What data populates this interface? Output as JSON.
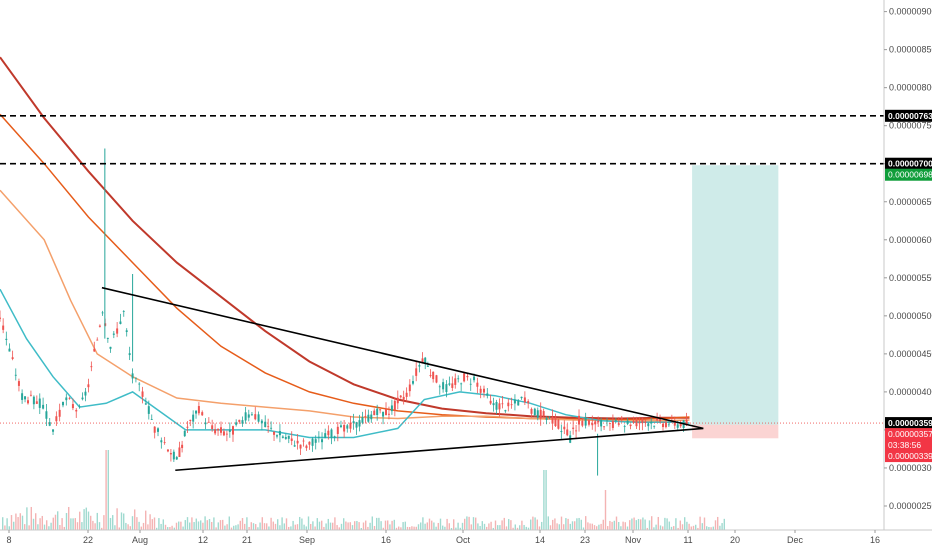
{
  "chart_data": {
    "type": "candlestick",
    "x_ticks": [
      "8",
      "22",
      "Aug",
      "12",
      "21",
      "Sep",
      "16",
      "Oct",
      "14",
      "23",
      "Nov",
      "11",
      "20",
      "Dec",
      "16"
    ],
    "y_ticks": [
      "0.00000900",
      "0.00000850",
      "0.00000800",
      "0.00000750",
      "0.00000700",
      "0.00000650",
      "0.00000600",
      "0.00000550",
      "0.00000500",
      "0.00000450",
      "0.00000400",
      "0.00000350",
      "0.00000300",
      "0.00000250"
    ],
    "ylim": [
      2.25e-06,
      9.1e-06
    ],
    "grid": false,
    "price_tags": [
      {
        "label": "0.00000763",
        "value": 7.63e-06,
        "style": "black"
      },
      {
        "label": "0.00000700",
        "value": 7e-06,
        "style": "black"
      },
      {
        "label": "0.00000698",
        "value": 6.98e-06,
        "style": "green"
      },
      {
        "label": "0.00000359",
        "value": 3.59e-06,
        "style": "black"
      },
      {
        "label": "0.00000357",
        "value": 3.57e-06,
        "style": "red"
      },
      {
        "label": "03:38:56",
        "value": 3.47e-06,
        "style": "red"
      },
      {
        "label": "0.00000339",
        "value": 3.39e-06,
        "style": "red"
      }
    ],
    "horizontal_levels": [
      7.63e-06,
      7e-06
    ],
    "triangle": {
      "upper": [
        [
          0.1153,
          5.37e-06
        ],
        [
          0.7956,
          3.52e-06
        ]
      ],
      "lower": [
        [
          0.1983,
          2.97e-06
        ],
        [
          0.7956,
          3.52e-06
        ]
      ]
    },
    "position": {
      "entry": 3.57e-06,
      "target": 6.98e-06,
      "stop": 3.39e-06,
      "x_start": 0.7829,
      "x_end": 0.8805
    },
    "price_series": [
      {
        "t": 0.0,
        "o": 507,
        "c": 500
      },
      {
        "t": 0.025,
        "o": 500,
        "c": 395
      },
      {
        "t": 0.045,
        "o": 395,
        "c": 385
      },
      {
        "t": 0.06,
        "o": 385,
        "c": 352
      },
      {
        "t": 0.075,
        "o": 352,
        "c": 390
      },
      {
        "t": 0.09,
        "o": 390,
        "c": 375
      },
      {
        "t": 0.1,
        "o": 375,
        "c": 410
      },
      {
        "t": 0.11,
        "o": 410,
        "c": 470
      },
      {
        "t": 0.116,
        "o": 470,
        "c": 510
      },
      {
        "t": 0.125,
        "o": 510,
        "c": 460
      },
      {
        "t": 0.14,
        "o": 460,
        "c": 505
      },
      {
        "t": 0.15,
        "o": 505,
        "c": 420
      },
      {
        "t": 0.165,
        "o": 420,
        "c": 390
      },
      {
        "t": 0.175,
        "o": 390,
        "c": 352
      },
      {
        "t": 0.19,
        "o": 352,
        "c": 328
      },
      {
        "t": 0.2,
        "o": 328,
        "c": 310
      },
      {
        "t": 0.212,
        "o": 310,
        "c": 355
      },
      {
        "t": 0.225,
        "o": 355,
        "c": 375
      },
      {
        "t": 0.24,
        "o": 375,
        "c": 352
      },
      {
        "t": 0.26,
        "o": 352,
        "c": 345
      },
      {
        "t": 0.285,
        "o": 345,
        "c": 375
      },
      {
        "t": 0.3,
        "o": 375,
        "c": 355
      },
      {
        "t": 0.33,
        "o": 355,
        "c": 335
      },
      {
        "t": 0.35,
        "o": 335,
        "c": 330
      },
      {
        "t": 0.375,
        "o": 330,
        "c": 345
      },
      {
        "t": 0.4,
        "o": 345,
        "c": 355
      },
      {
        "t": 0.42,
        "o": 355,
        "c": 370
      },
      {
        "t": 0.44,
        "o": 370,
        "c": 375
      },
      {
        "t": 0.46,
        "o": 375,
        "c": 398
      },
      {
        "t": 0.478,
        "o": 398,
        "c": 445
      },
      {
        "t": 0.49,
        "o": 445,
        "c": 420
      },
      {
        "t": 0.505,
        "o": 420,
        "c": 405
      },
      {
        "t": 0.525,
        "o": 405,
        "c": 420
      },
      {
        "t": 0.54,
        "o": 420,
        "c": 412
      },
      {
        "t": 0.555,
        "o": 412,
        "c": 385
      },
      {
        "t": 0.575,
        "o": 385,
        "c": 380
      },
      {
        "t": 0.59,
        "o": 380,
        "c": 390
      },
      {
        "t": 0.605,
        "o": 390,
        "c": 373
      },
      {
        "t": 0.625,
        "o": 373,
        "c": 365
      },
      {
        "t": 0.645,
        "o": 365,
        "c": 340
      },
      {
        "t": 0.655,
        "o": 340,
        "c": 362
      },
      {
        "t": 0.67,
        "o": 362,
        "c": 360
      },
      {
        "t": 0.69,
        "o": 360,
        "c": 355
      },
      {
        "t": 0.71,
        "o": 355,
        "c": 360
      },
      {
        "t": 0.73,
        "o": 360,
        "c": 362
      },
      {
        "t": 0.75,
        "o": 362,
        "c": 360
      },
      {
        "t": 0.77,
        "o": 360,
        "c": 359
      },
      {
        "t": 0.78,
        "o": 359,
        "c": 357
      }
    ],
    "moving_averages": [
      {
        "color": "#c0392b",
        "points": [
          [
            0.0,
            840
          ],
          [
            0.05,
            760
          ],
          [
            0.1,
            690
          ],
          [
            0.15,
            625
          ],
          [
            0.2,
            570
          ],
          [
            0.25,
            525
          ],
          [
            0.3,
            480
          ],
          [
            0.35,
            440
          ],
          [
            0.4,
            410
          ],
          [
            0.45,
            390
          ],
          [
            0.5,
            378
          ],
          [
            0.55,
            372
          ],
          [
            0.6,
            368
          ],
          [
            0.65,
            366
          ],
          [
            0.7,
            365
          ],
          [
            0.75,
            366
          ],
          [
            0.78,
            366
          ]
        ]
      },
      {
        "color": "#e65c1a",
        "points": [
          [
            0.0,
            765
          ],
          [
            0.05,
            700
          ],
          [
            0.1,
            630
          ],
          [
            0.15,
            570
          ],
          [
            0.2,
            510
          ],
          [
            0.25,
            460
          ],
          [
            0.3,
            425
          ],
          [
            0.35,
            400
          ],
          [
            0.4,
            385
          ],
          [
            0.45,
            375
          ],
          [
            0.5,
            370
          ],
          [
            0.55,
            367
          ],
          [
            0.6,
            365
          ],
          [
            0.65,
            364
          ],
          [
            0.7,
            363
          ],
          [
            0.75,
            365
          ],
          [
            0.78,
            367
          ]
        ]
      },
      {
        "color": "#f4a06b",
        "points": [
          [
            0.0,
            665
          ],
          [
            0.05,
            600
          ],
          [
            0.08,
            520
          ],
          [
            0.11,
            450
          ],
          [
            0.15,
            420
          ],
          [
            0.2,
            392
          ],
          [
            0.25,
            385
          ],
          [
            0.3,
            380
          ],
          [
            0.35,
            375
          ],
          [
            0.4,
            367
          ],
          [
            0.45,
            365
          ],
          [
            0.5,
            368
          ],
          [
            0.55,
            368
          ],
          [
            0.6,
            365
          ],
          [
            0.65,
            363
          ],
          [
            0.7,
            362
          ],
          [
            0.75,
            362
          ],
          [
            0.78,
            363
          ]
        ]
      },
      {
        "color": "#3fbcc7",
        "points": [
          [
            0.0,
            535
          ],
          [
            0.03,
            470
          ],
          [
            0.06,
            420
          ],
          [
            0.09,
            380
          ],
          [
            0.12,
            385
          ],
          [
            0.15,
            400
          ],
          [
            0.18,
            375
          ],
          [
            0.21,
            350
          ],
          [
            0.25,
            350
          ],
          [
            0.3,
            350
          ],
          [
            0.35,
            340
          ],
          [
            0.4,
            340
          ],
          [
            0.45,
            352
          ],
          [
            0.48,
            390
          ],
          [
            0.52,
            400
          ],
          [
            0.56,
            395
          ],
          [
            0.6,
            385
          ],
          [
            0.64,
            370
          ],
          [
            0.68,
            362
          ],
          [
            0.72,
            360
          ],
          [
            0.76,
            360
          ],
          [
            0.78,
            359
          ]
        ]
      }
    ]
  }
}
